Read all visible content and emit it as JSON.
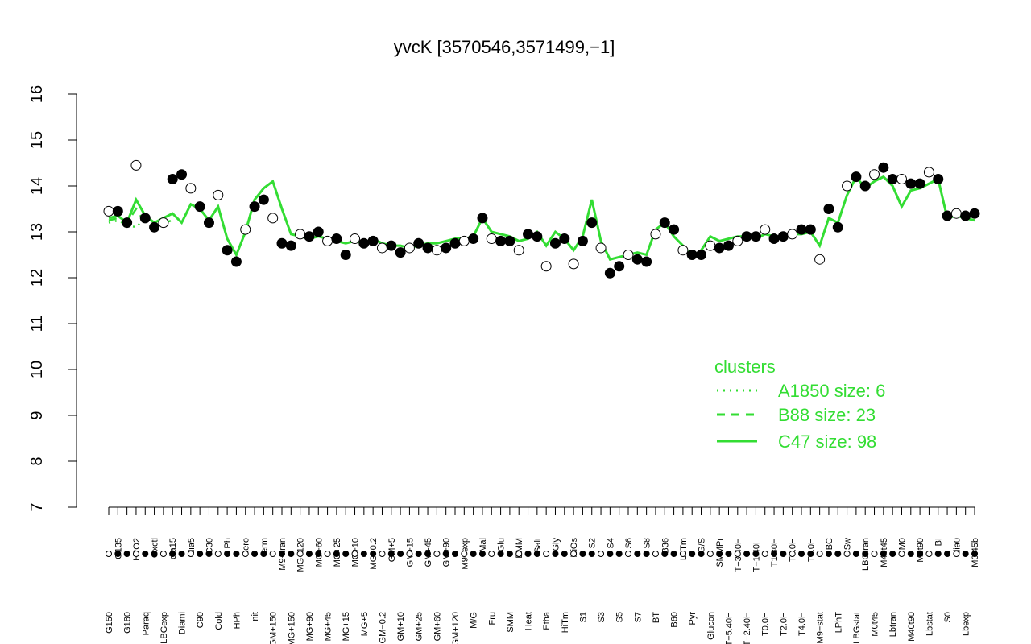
{
  "colors": {
    "accent": "#33dd33",
    "points_dark": "#000000",
    "points_light": "#ffffff"
  },
  "chart_data": {
    "type": "scatter",
    "title": "yvcK [3570546,3571499,−1]",
    "xlabel": "",
    "ylabel": "",
    "ylim": [
      7,
      16
    ],
    "yticks": [
      7,
      8,
      9,
      10,
      11,
      12,
      13,
      14,
      15,
      16
    ],
    "grid": false,
    "legend": {
      "title": "clusters",
      "placement": "right",
      "entries": [
        {
          "label": "A1850 size: 6",
          "style": "dotted"
        },
        {
          "label": "B88 size: 23",
          "style": "dashed"
        },
        {
          "label": "C47 size: 98",
          "style": "solid"
        }
      ]
    },
    "categories": [
      "G150",
      "G135",
      "G180",
      "H2O2",
      "Paraq",
      "Oxctl",
      "LBGexp",
      "dia15",
      "Diami",
      "dia5",
      "C90",
      "C30",
      "Cold",
      "LPh",
      "HPh",
      "aero",
      "nit",
      "ferm",
      "GM+150",
      "M9−tran",
      "MG+150",
      "MG+120",
      "MG+90",
      "MG+60",
      "MG+45",
      "MG+25",
      "MG+15",
      "MG+10",
      "MG+5",
      "MG−0.2",
      "GM−0.2",
      "GM+5",
      "GM+10",
      "GM+15",
      "GM+25",
      "GM+45",
      "GM+60",
      "GM+90",
      "GM+120",
      "M9−exp",
      "M/G",
      "Mal",
      "Fru",
      "Glu",
      "SMM",
      "BMM",
      "Heat",
      "Salt",
      "Etha",
      "Gly",
      "HiTm",
      "HiOs",
      "S1",
      "S2",
      "S3",
      "S4",
      "S5",
      "S6",
      "S7",
      "S8",
      "BT",
      "B36",
      "B60",
      "LoTm",
      "Pyr",
      "G/S",
      "Glucon",
      "SMMPr",
      "T−5.40H",
      "T−3.40H",
      "T−2.40H",
      "T−1.40H",
      "T0.0H",
      "T1.30H",
      "T2.0H",
      "T3.0H",
      "T4.0H",
      "T5.0H",
      "M9−stat",
      "BC",
      "LPhT",
      "Sw",
      "LBGstat",
      "LBGtran",
      "M0t45",
      "M40t45",
      "Lbtran",
      "M0",
      "M40t90",
      "M0t90",
      "Lbstat",
      "BI",
      "S0",
      "dia0",
      "Lbexp",
      "M0t45b"
    ],
    "series": [
      {
        "style": "solid",
        "values": [
          13.3,
          13.35,
          13.2,
          13.7,
          13.35,
          13.2,
          13.3,
          13.4,
          13.2,
          13.6,
          13.5,
          13.25,
          13.55,
          12.85,
          12.5,
          13.0,
          13.7,
          13.95,
          14.1,
          13.5,
          12.95,
          12.9,
          12.85,
          12.9,
          12.85,
          12.8,
          12.75,
          12.8,
          12.75,
          12.85,
          12.75,
          12.7,
          12.7,
          12.65,
          12.7,
          12.75,
          12.75,
          12.8,
          12.85,
          12.85,
          12.9,
          13.3,
          13.0,
          12.95,
          12.9,
          12.8,
          12.85,
          13.0,
          12.7,
          13.0,
          12.85,
          12.6,
          12.9,
          13.7,
          12.8,
          12.4,
          12.45,
          12.5,
          12.55,
          12.5,
          13.05,
          13.2,
          12.9,
          12.7,
          12.45,
          12.6,
          12.9,
          12.8,
          12.85,
          12.9,
          12.9,
          12.85,
          12.95,
          12.9,
          12.9,
          12.95,
          12.95,
          13.0,
          12.7,
          13.3,
          13.2,
          13.8,
          14.2,
          13.95,
          14.1,
          14.2,
          14.0,
          13.55,
          13.9,
          13.95,
          14.05,
          14.15,
          13.3,
          13.35,
          13.3,
          13.25
        ],
        "points": [
          13.45,
          13.45,
          13.2,
          14.45,
          13.3,
          13.1,
          13.2,
          14.15,
          14.25,
          13.95,
          13.55,
          13.2,
          13.8,
          12.6,
          12.35,
          13.05,
          13.55,
          13.7,
          13.3,
          12.75,
          12.7,
          12.95,
          12.9,
          13.0,
          12.8,
          12.85,
          12.5,
          12.85,
          12.75,
          12.8,
          12.65,
          12.7,
          12.55,
          12.65,
          12.75,
          12.65,
          12.6,
          12.65,
          12.75,
          12.8,
          12.85,
          13.3,
          12.85,
          12.8,
          12.8,
          12.6,
          12.95,
          12.9,
          12.25,
          12.75,
          12.85,
          12.3,
          12.8,
          13.2,
          12.65,
          12.1,
          12.25,
          12.5,
          12.4,
          12.35,
          12.95,
          13.2,
          13.05,
          12.6,
          12.5,
          12.5,
          12.7,
          12.65,
          12.7,
          12.8,
          12.9,
          12.9,
          13.05,
          12.85,
          12.9,
          12.95,
          13.05,
          13.05,
          12.4,
          13.5,
          13.1,
          14.0,
          14.2,
          14.0,
          14.25,
          14.4,
          14.15,
          14.15,
          14.05,
          14.05,
          14.3,
          14.15,
          13.35,
          13.4,
          13.35,
          13.4
        ]
      },
      {
        "style": "dashed",
        "values": [
          13.25,
          13.3,
          13.2,
          13.5,
          13.2,
          13.1,
          13.2,
          13.25
        ]
      },
      {
        "style": "dotted",
        "values": [
          13.2,
          13.25,
          13.15,
          13.1,
          13.3,
          13.2
        ]
      }
    ]
  }
}
